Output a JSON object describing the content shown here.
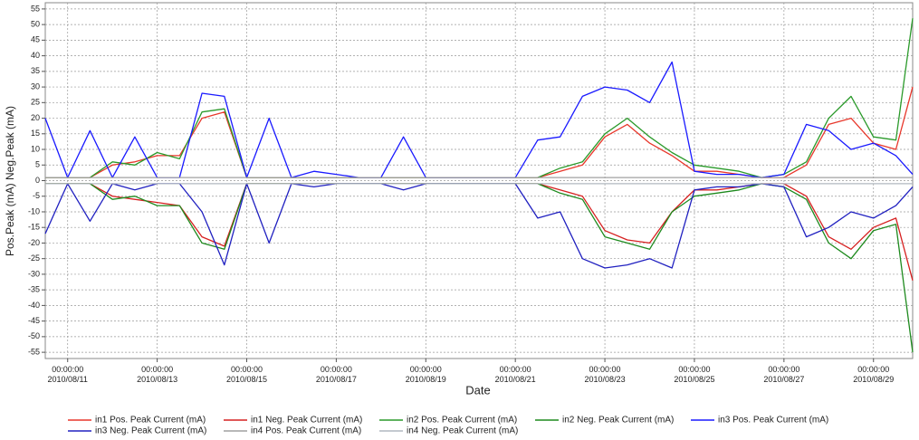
{
  "chart_data": {
    "type": "line",
    "y_label": "Pos.Peak (mA) Neg.Peak (mA)",
    "x_label": "Date",
    "x": [
      "2010/08/10 12:00:00",
      "2010/08/11 00:00:00",
      "2010/08/11 12:00:00",
      "2010/08/12 00:00:00",
      "2010/08/12 12:00:00",
      "2010/08/13 00:00:00",
      "2010/08/13 12:00:00",
      "2010/08/14 00:00:00",
      "2010/08/14 12:00:00",
      "2010/08/15 00:00:00",
      "2010/08/15 12:00:00",
      "2010/08/16 00:00:00",
      "2010/08/16 12:00:00",
      "2010/08/17 00:00:00",
      "2010/08/17 12:00:00",
      "2010/08/18 00:00:00",
      "2010/08/18 12:00:00",
      "2010/08/19 00:00:00",
      "2010/08/19 12:00:00",
      "2010/08/20 00:00:00",
      "2010/08/20 12:00:00",
      "2010/08/21 00:00:00",
      "2010/08/21 12:00:00",
      "2010/08/22 00:00:00",
      "2010/08/22 12:00:00",
      "2010/08/23 00:00:00",
      "2010/08/23 12:00:00",
      "2010/08/24 00:00:00",
      "2010/08/24 12:00:00",
      "2010/08/25 00:00:00",
      "2010/08/25 12:00:00",
      "2010/08/26 00:00:00",
      "2010/08/26 12:00:00",
      "2010/08/27 00:00:00",
      "2010/08/27 12:00:00",
      "2010/08/28 00:00:00",
      "2010/08/28 12:00:00",
      "2010/08/29 00:00:00",
      "2010/08/29 12:00:00",
      "2010/08/29 21:00:00"
    ],
    "xlim": [
      "2010/08/10 12:00:00",
      "2010/08/29 21:00:00"
    ],
    "xticks": [
      {
        "value": "2010/08/11 00:00:00",
        "label": "00:00:00 2010/08/11"
      },
      {
        "value": "2010/08/13 00:00:00",
        "label": "00:00:00 2010/08/13"
      },
      {
        "value": "2010/08/15 00:00:00",
        "label": "00:00:00 2010/08/15"
      },
      {
        "value": "2010/08/17 00:00:00",
        "label": "00:00:00 2010/08/17"
      },
      {
        "value": "2010/08/19 00:00:00",
        "label": "00:00:00 2010/08/19"
      },
      {
        "value": "2010/08/21 00:00:00",
        "label": "00:00:00 2010/08/21"
      },
      {
        "value": "2010/08/23 00:00:00",
        "label": "00:00:00 2010/08/23"
      },
      {
        "value": "2010/08/25 00:00:00",
        "label": "00:00:00 2010/08/25"
      },
      {
        "value": "2010/08/27 00:00:00",
        "label": "00:00:00 2010/08/27"
      },
      {
        "value": "2010/08/29 00:00:00",
        "label": "00:00:00 2010/08/29"
      }
    ],
    "ylim": [
      -57,
      57
    ],
    "yticks": [
      -55,
      -50,
      -45,
      -40,
      -35,
      -30,
      -25,
      -20,
      -15,
      -10,
      -5,
      0,
      5,
      10,
      15,
      20,
      25,
      30,
      35,
      40,
      45,
      50,
      55
    ],
    "grid": true,
    "series": [
      {
        "name": "in1 Pos. Peak Current (mA)",
        "color": "#e8372b",
        "values": [
          1,
          1,
          1,
          5,
          6,
          8,
          8,
          20,
          22,
          1,
          1,
          1,
          1,
          1,
          1,
          1,
          1,
          1,
          1,
          1,
          1,
          1,
          1,
          3,
          5,
          14,
          18,
          12,
          8,
          3,
          3,
          2,
          1,
          1,
          5,
          18,
          20,
          12,
          10,
          30
        ]
      },
      {
        "name": "in1 Neg. Peak Current (mA)",
        "color": "#d62020",
        "values": [
          -1,
          -1,
          -1,
          -5,
          -6,
          -7,
          -8,
          -18,
          -21,
          -1,
          -1,
          -1,
          -1,
          -1,
          -1,
          -1,
          -1,
          -1,
          -1,
          -1,
          -1,
          -1,
          -1,
          -3,
          -5,
          -16,
          -19,
          -20,
          -10,
          -3,
          -3,
          -2,
          -1,
          -1,
          -5,
          -18,
          -22,
          -15,
          -12,
          -32
        ]
      },
      {
        "name": "in2 Pos. Peak Current (mA)",
        "color": "#2a9a2a",
        "values": [
          1,
          1,
          1,
          6,
          5,
          9,
          7,
          22,
          23,
          1,
          1,
          1,
          1,
          1,
          1,
          1,
          1,
          1,
          1,
          1,
          1,
          1,
          1,
          4,
          6,
          15,
          20,
          14,
          9,
          5,
          4,
          3,
          1,
          2,
          6,
          20,
          27,
          14,
          13,
          52
        ]
      },
      {
        "name": "in2 Neg. Peak Current (mA)",
        "color": "#1e8a1e",
        "values": [
          -1,
          -1,
          -1,
          -6,
          -5,
          -8,
          -8,
          -20,
          -22,
          -1,
          -1,
          -1,
          -1,
          -1,
          -1,
          -1,
          -1,
          -1,
          -1,
          -1,
          -1,
          -1,
          -1,
          -4,
          -6,
          -18,
          -20,
          -22,
          -10,
          -5,
          -4,
          -3,
          -1,
          -2,
          -6,
          -20,
          -25,
          -16,
          -14,
          -55
        ]
      },
      {
        "name": "in3 Pos. Peak Current (mA)",
        "color": "#1a1aff",
        "values": [
          20,
          1,
          16,
          1,
          14,
          1,
          1,
          28,
          27,
          1,
          20,
          1,
          3,
          2,
          1,
          1,
          14,
          1,
          1,
          1,
          1,
          1,
          13,
          14,
          27,
          30,
          29,
          25,
          38,
          3,
          2,
          2,
          1,
          2,
          18,
          16,
          10,
          12,
          8,
          2
        ]
      },
      {
        "name": "in3 Neg. Peak Current (mA)",
        "color": "#2020c0",
        "values": [
          -17,
          -1,
          -13,
          -1,
          -3,
          -1,
          -1,
          -10,
          -27,
          -1,
          -20,
          -1,
          -2,
          -1,
          -1,
          -1,
          -3,
          -1,
          -1,
          -1,
          -1,
          -1,
          -12,
          -10,
          -25,
          -28,
          -27,
          -25,
          -28,
          -3,
          -2,
          -2,
          -1,
          -2,
          -18,
          -15,
          -10,
          -12,
          -8,
          -2
        ]
      },
      {
        "name": "in4 Pos. Peak Current (mA)",
        "color": "#a0a0a0",
        "values": [
          1,
          1,
          1,
          1,
          1,
          1,
          1,
          1,
          1,
          1,
          1,
          1,
          1,
          1,
          1,
          1,
          1,
          1,
          1,
          1,
          1,
          1,
          1,
          1,
          1,
          1,
          1,
          1,
          1,
          1,
          1,
          1,
          1,
          1,
          1,
          1,
          1,
          1,
          1,
          1
        ]
      },
      {
        "name": "in4 Neg. Peak Current (mA)",
        "color": "#b0b8c0",
        "values": [
          -1,
          -1,
          -1,
          -1,
          -1,
          -1,
          -1,
          -1,
          -1,
          -1,
          -1,
          -1,
          -1,
          -1,
          -1,
          -1,
          -1,
          -1,
          -1,
          -1,
          -1,
          -1,
          -1,
          -1,
          -1,
          -1,
          -1,
          -1,
          -1,
          -1,
          -1,
          -1,
          -1,
          -1,
          -1,
          -1,
          -1,
          -1,
          -1,
          -1
        ]
      }
    ]
  }
}
